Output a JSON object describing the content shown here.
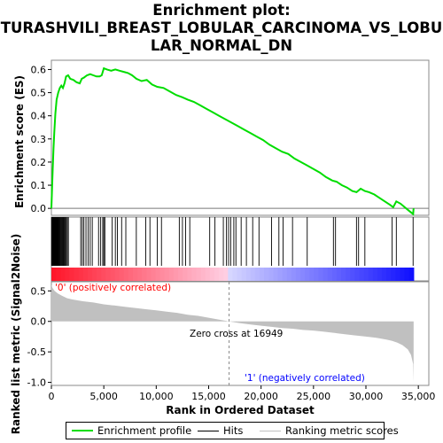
{
  "chart_data": {
    "type": "line",
    "title_lines": [
      "Enrichment plot:",
      "TURASHVILI_BREAST_LOBULAR_CARCINOMA_VS_LOBU",
      "LAR_NORMAL_DN"
    ],
    "es_panel": {
      "ylabel": "Enrichment score (ES)",
      "ylim": [
        -0.03,
        0.64
      ],
      "yticks": [
        0.0,
        0.1,
        0.2,
        0.3,
        0.4,
        0.5,
        0.6
      ],
      "ytick_labels": [
        "0.0",
        "0.1",
        "0.2",
        "0.3",
        "0.4",
        "0.5",
        "0.6"
      ],
      "series": [
        {
          "name": "Enrichment profile",
          "color": "#00dd00",
          "x": [
            0,
            60,
            130,
            200,
            280,
            380,
            500,
            650,
            800,
            950,
            1100,
            1250,
            1400,
            1600,
            1800,
            2100,
            2400,
            2700,
            2900,
            3100,
            3400,
            3700,
            4000,
            4300,
            4600,
            4800,
            5000,
            5300,
            5700,
            6100,
            6500,
            6900,
            7300,
            7700,
            8100,
            8600,
            9100,
            9600,
            10100,
            10700,
            11300,
            11900,
            12500,
            13000,
            13600,
            14200,
            14800,
            15400,
            16000,
            16600,
            17200,
            17800,
            18400,
            19000,
            19600,
            20200,
            20800,
            21400,
            22000,
            22600,
            23200,
            23800,
            24400,
            25000,
            25600,
            26200,
            26800,
            27200,
            27700,
            28200,
            28700,
            29100,
            29500,
            29900,
            30300,
            30800,
            31300,
            31800,
            32300,
            32600,
            32900,
            33300,
            33700,
            34100,
            34500,
            34550
          ],
          "y": [
            0.0,
            0.08,
            0.17,
            0.26,
            0.33,
            0.41,
            0.47,
            0.5,
            0.52,
            0.53,
            0.52,
            0.54,
            0.57,
            0.575,
            0.56,
            0.555,
            0.545,
            0.54,
            0.56,
            0.565,
            0.575,
            0.58,
            0.575,
            0.57,
            0.57,
            0.575,
            0.605,
            0.6,
            0.595,
            0.6,
            0.595,
            0.59,
            0.585,
            0.575,
            0.56,
            0.55,
            0.555,
            0.535,
            0.525,
            0.52,
            0.505,
            0.49,
            0.48,
            0.47,
            0.46,
            0.445,
            0.43,
            0.415,
            0.4,
            0.385,
            0.37,
            0.355,
            0.34,
            0.325,
            0.31,
            0.295,
            0.275,
            0.26,
            0.245,
            0.235,
            0.215,
            0.2,
            0.185,
            0.17,
            0.155,
            0.135,
            0.12,
            0.115,
            0.1,
            0.09,
            0.075,
            0.07,
            0.085,
            0.075,
            0.07,
            0.06,
            0.045,
            0.03,
            0.015,
            0.005,
            0.03,
            0.02,
            0.005,
            -0.01,
            -0.025,
            0.0
          ]
        }
      ]
    },
    "hits_panel": {
      "legend_label": "Hits",
      "hit_positions": [
        20,
        40,
        60,
        80,
        100,
        120,
        140,
        160,
        180,
        200,
        220,
        240,
        260,
        280,
        300,
        320,
        340,
        360,
        380,
        400,
        430,
        460,
        490,
        520,
        560,
        600,
        650,
        700,
        760,
        820,
        880,
        950,
        1020,
        1100,
        1180,
        1260,
        1340,
        1420,
        1520,
        1620,
        2800,
        2950,
        3100,
        3300,
        3500,
        3700,
        3900,
        4500,
        4700,
        4900,
        5000,
        5100,
        5800,
        6100,
        6300,
        6700,
        7100,
        8100,
        9000,
        9400,
        10100,
        10500,
        12200,
        12500,
        12800,
        13200,
        15100,
        15600,
        16400,
        16700,
        16900,
        17100,
        17400,
        17600,
        18100,
        18600,
        19200,
        19800,
        21000,
        21700,
        22100,
        23000,
        24400,
        26900,
        27100,
        29100,
        29300,
        29900,
        32500,
        32900,
        34500
      ]
    },
    "metric_panel": {
      "ylabel_lines": [
        "Ranked list metric (Signal2Noise)"
      ],
      "ylim": [
        -1.05,
        0.65
      ],
      "yticks": [
        0.5,
        0.0,
        -0.5,
        -1.0
      ],
      "ytick_labels": [
        "0.5",
        "0.0",
        "-0.5",
        "-1.0"
      ],
      "legend_label": "Ranking metric scores",
      "color": "#c0c0c0",
      "x": [
        0,
        100,
        300,
        600,
        1000,
        1500,
        2000,
        3000,
        4000,
        5000,
        6000,
        7000,
        8000,
        9000,
        10000,
        11000,
        12000,
        13000,
        14000,
        15000,
        16000,
        16949,
        18000,
        19000,
        20000,
        21000,
        22000,
        23000,
        24000,
        25000,
        26000,
        27000,
        28000,
        29000,
        30000,
        31000,
        32000,
        32500,
        33000,
        33500,
        34000,
        34300,
        34500,
        34550
      ],
      "y": [
        0.6,
        0.55,
        0.5,
        0.46,
        0.42,
        0.38,
        0.36,
        0.33,
        0.31,
        0.28,
        0.26,
        0.24,
        0.22,
        0.2,
        0.18,
        0.16,
        0.14,
        0.11,
        0.09,
        0.06,
        0.03,
        0.0,
        -0.03,
        -0.05,
        -0.07,
        -0.09,
        -0.11,
        -0.12,
        -0.14,
        -0.15,
        -0.17,
        -0.19,
        -0.21,
        -0.23,
        -0.25,
        -0.27,
        -0.3,
        -0.32,
        -0.35,
        -0.39,
        -0.46,
        -0.55,
        -0.7,
        -1.0
      ],
      "zero_cross_label": "Zero cross at 16949",
      "zero_cross_x": 16949,
      "positive_label": "'0' (positively correlated)",
      "positive_color": "#ff0000",
      "negative_label": "'1' (negatively correlated)",
      "negative_color": "#0000ff"
    },
    "xlabel": "Rank in Ordered Dataset",
    "xlim": [
      0,
      36000
    ],
    "xticks": [
      0,
      5000,
      10000,
      15000,
      20000,
      25000,
      30000,
      35000
    ],
    "xtick_labels": [
      "0",
      "5,000",
      "10,000",
      "15,000",
      "20,000",
      "25,000",
      "30,000",
      "35,000"
    ],
    "total_genes": 34550,
    "legend": [
      "Enrichment profile",
      "Hits",
      "Ranking metric scores"
    ]
  }
}
